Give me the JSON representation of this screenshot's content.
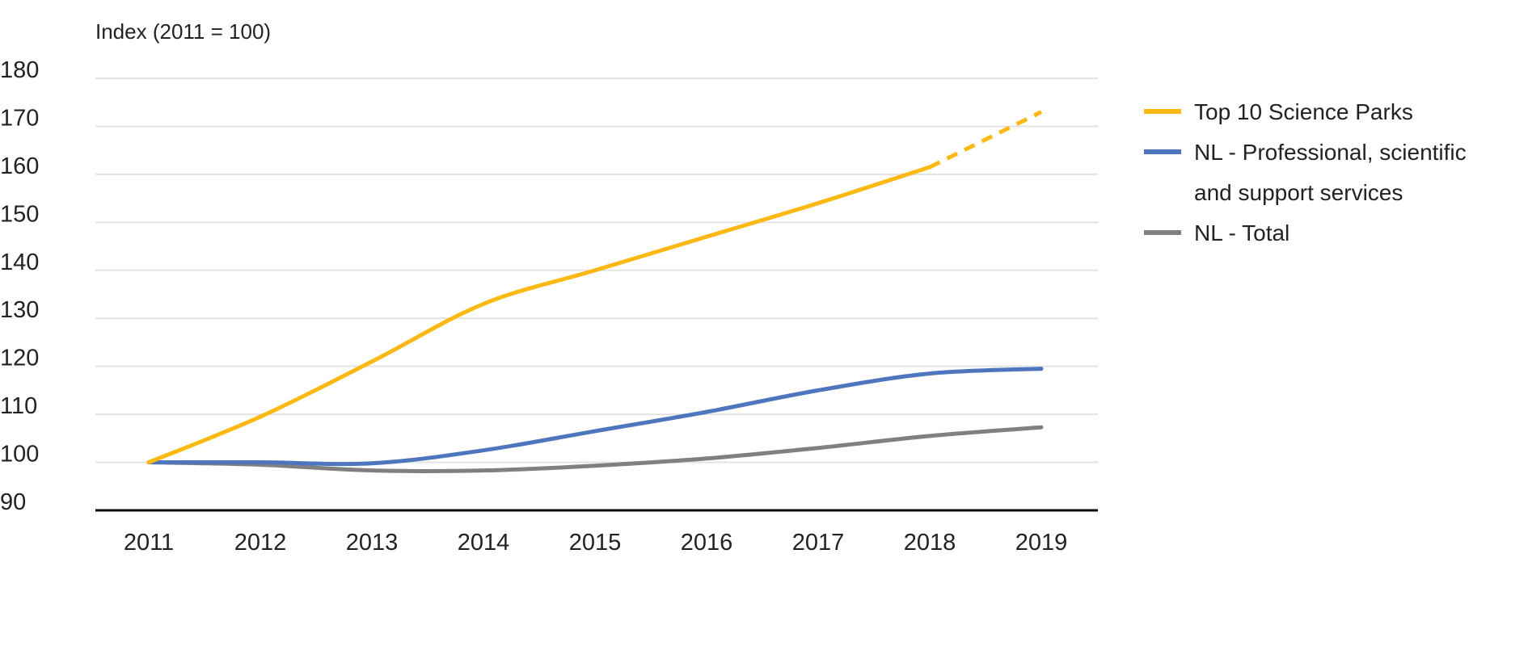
{
  "chart_data": {
    "type": "line",
    "title": "",
    "ylabel": "Index (2011 = 100)",
    "xlabel": "",
    "categories": [
      "2011",
      "2012",
      "2013",
      "2014",
      "2015",
      "2016",
      "2017",
      "2018",
      "2019"
    ],
    "ylim": [
      90,
      180
    ],
    "yticks": [
      90,
      100,
      110,
      120,
      130,
      140,
      150,
      160,
      170,
      180
    ],
    "grid": true,
    "legend_position": "right",
    "series": [
      {
        "name": "Top 10 Science Parks",
        "color": "#FDB913",
        "values": [
          100,
          109.5,
          121,
          133,
          140,
          147,
          154,
          161.5,
          173
        ],
        "dashed_from": "2018"
      },
      {
        "name": "NL - Professional, scientific and support services",
        "name_lines": [
          "NL - Professional, scientific",
          "and support services"
        ],
        "color": "#4E76BE",
        "values": [
          100,
          100,
          99.8,
          102.5,
          106.5,
          110.5,
          115,
          118.5,
          119.5
        ]
      },
      {
        "name": "NL - Total",
        "color": "#808080",
        "values": [
          100,
          99.5,
          98.3,
          98.3,
          99.3,
          100.8,
          103,
          105.5,
          107.3
        ]
      }
    ]
  }
}
